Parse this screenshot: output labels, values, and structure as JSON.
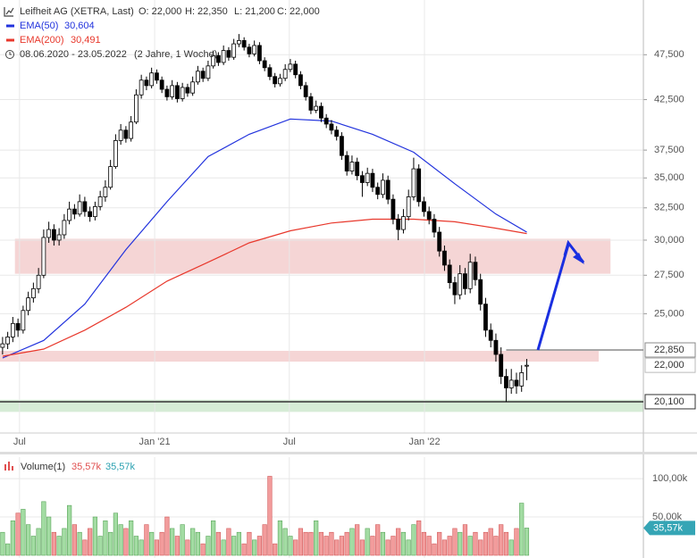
{
  "chart_data": {
    "type": "candlestick",
    "title": "Leifheit AG (XETRA, Last)",
    "ohlc_labels": [
      "O: 22,000",
      "H: 22,350",
      "L: 21,200",
      "C: 22,000"
    ],
    "period": "08.06.2020 - 23.05.2022",
    "period_note": "(2 Jahre, 1 Woche)",
    "log_scale": true,
    "grid": true,
    "ylim": [
      18.6,
      54.4
    ],
    "yticks": [
      {
        "value": 25,
        "label": "25,000"
      },
      {
        "value": 27.5,
        "label": "27,500"
      },
      {
        "value": 30,
        "label": "30,000"
      },
      {
        "value": 32.5,
        "label": "32,500"
      },
      {
        "value": 35,
        "label": "35,000"
      },
      {
        "value": 37.5,
        "label": "37,500"
      },
      {
        "value": 42.5,
        "label": "42,500"
      },
      {
        "value": 47.5,
        "label": "47,500"
      }
    ],
    "xlim": [
      -0.5,
      124.7
    ],
    "xticks": [
      {
        "value": 3.3,
        "label": "Jul"
      },
      {
        "value": 29.6,
        "label": "Jan '21"
      },
      {
        "value": 55.8,
        "label": "Jul"
      },
      {
        "value": 82.1,
        "label": "Jan '22"
      }
    ],
    "up_color": "#ffffff",
    "down_color": "#000000",
    "candles": [
      [
        23.0,
        23.6,
        22.6,
        23.2
      ],
      [
        23.2,
        23.9,
        22.9,
        23.6
      ],
      [
        23.6,
        24.8,
        23.3,
        24.4
      ],
      [
        24.4,
        24.7,
        23.6,
        24.0
      ],
      [
        24.0,
        25.5,
        23.8,
        25.2
      ],
      [
        25.2,
        26.4,
        24.9,
        26.0
      ],
      [
        26.0,
        27.0,
        25.7,
        26.6
      ],
      [
        26.6,
        28.0,
        26.3,
        27.5
      ],
      [
        27.5,
        30.8,
        27.3,
        30.2
      ],
      [
        30.2,
        31.4,
        29.8,
        30.8
      ],
      [
        30.8,
        31.2,
        29.6,
        30.0
      ],
      [
        30.0,
        30.9,
        29.6,
        30.4
      ],
      [
        30.4,
        32.0,
        30.1,
        31.5
      ],
      [
        31.5,
        33.0,
        31.2,
        32.4
      ],
      [
        32.4,
        32.8,
        31.6,
        32.0
      ],
      [
        32.0,
        33.6,
        31.8,
        33.0
      ],
      [
        33.0,
        33.4,
        31.8,
        32.2
      ],
      [
        32.2,
        32.6,
        31.4,
        31.8
      ],
      [
        31.8,
        33.0,
        31.5,
        32.6
      ],
      [
        32.6,
        33.9,
        32.3,
        33.4
      ],
      [
        33.4,
        34.8,
        33.0,
        34.2
      ],
      [
        34.2,
        36.6,
        34.0,
        36.0
      ],
      [
        36.0,
        39.0,
        35.8,
        38.4
      ],
      [
        38.4,
        40.0,
        38.0,
        39.4
      ],
      [
        39.4,
        39.8,
        38.2,
        38.6
      ],
      [
        38.6,
        40.8,
        38.3,
        40.2
      ],
      [
        40.2,
        43.6,
        40.0,
        43.0
      ],
      [
        43.0,
        45.2,
        42.6,
        44.6
      ],
      [
        44.6,
        45.0,
        43.5,
        44.0
      ],
      [
        44.0,
        46.0,
        43.7,
        45.4
      ],
      [
        45.4,
        45.8,
        44.2,
        44.6
      ],
      [
        44.6,
        45.0,
        43.2,
        43.6
      ],
      [
        43.6,
        44.0,
        42.4,
        42.8
      ],
      [
        42.8,
        44.6,
        42.5,
        44.0
      ],
      [
        44.0,
        44.4,
        42.2,
        42.6
      ],
      [
        42.6,
        44.3,
        42.3,
        43.8
      ],
      [
        43.8,
        44.2,
        42.8,
        43.2
      ],
      [
        43.2,
        45.0,
        42.9,
        44.4
      ],
      [
        44.4,
        46.2,
        44.1,
        45.6
      ],
      [
        45.6,
        46.0,
        44.4,
        44.8
      ],
      [
        44.8,
        46.8,
        44.5,
        46.2
      ],
      [
        46.2,
        48.0,
        45.9,
        47.4
      ],
      [
        47.4,
        47.8,
        46.2,
        46.6
      ],
      [
        46.6,
        48.6,
        46.3,
        48.0
      ],
      [
        48.0,
        48.4,
        46.8,
        47.2
      ],
      [
        47.2,
        49.4,
        46.9,
        48.8
      ],
      [
        48.8,
        50.0,
        48.4,
        49.2
      ],
      [
        49.2,
        49.6,
        48.0,
        48.4
      ],
      [
        48.4,
        48.8,
        47.2,
        47.6
      ],
      [
        47.6,
        49.2,
        47.3,
        48.6
      ],
      [
        48.6,
        49.0,
        46.4,
        46.8
      ],
      [
        46.8,
        47.2,
        45.6,
        46.0
      ],
      [
        46.0,
        46.4,
        44.6,
        45.0
      ],
      [
        45.0,
        45.4,
        43.8,
        44.2
      ],
      [
        44.2,
        45.3,
        43.9,
        44.8
      ],
      [
        44.8,
        46.4,
        44.5,
        45.8
      ],
      [
        45.8,
        47.0,
        45.5,
        46.4
      ],
      [
        46.4,
        46.8,
        44.8,
        45.2
      ],
      [
        45.2,
        45.6,
        43.6,
        44.0
      ],
      [
        44.0,
        44.4,
        42.4,
        42.8
      ],
      [
        42.8,
        43.2,
        41.0,
        41.4
      ],
      [
        41.4,
        42.4,
        41.1,
        41.8
      ],
      [
        41.8,
        42.2,
        40.2,
        40.6
      ],
      [
        40.6,
        41.0,
        39.6,
        40.0
      ],
      [
        40.0,
        40.4,
        39.0,
        39.4
      ],
      [
        39.4,
        39.8,
        38.4,
        38.8
      ],
      [
        38.8,
        39.2,
        36.6,
        37.0
      ],
      [
        37.0,
        37.4,
        35.2,
        35.6
      ],
      [
        35.6,
        37.0,
        35.3,
        36.4
      ],
      [
        36.4,
        36.8,
        34.8,
        35.2
      ],
      [
        35.2,
        35.6,
        33.4,
        34.6
      ],
      [
        34.6,
        35.9,
        34.3,
        35.4
      ],
      [
        35.4,
        35.8,
        33.8,
        34.2
      ],
      [
        34.2,
        34.6,
        33.2,
        33.6
      ],
      [
        33.6,
        35.4,
        33.3,
        34.8
      ],
      [
        34.8,
        35.2,
        32.8,
        33.2
      ],
      [
        33.2,
        33.6,
        31.2,
        31.6
      ],
      [
        31.6,
        32.0,
        30.0,
        30.8
      ],
      [
        30.8,
        32.4,
        30.5,
        31.8
      ],
      [
        31.8,
        34.0,
        31.5,
        33.4
      ],
      [
        33.4,
        36.8,
        33.1,
        35.8
      ],
      [
        35.8,
        36.2,
        32.6,
        33.0
      ],
      [
        33.0,
        33.4,
        31.8,
        32.2
      ],
      [
        32.2,
        32.6,
        31.2,
        31.6
      ],
      [
        31.6,
        32.0,
        30.2,
        30.6
      ],
      [
        30.6,
        31.0,
        28.8,
        29.2
      ],
      [
        29.2,
        29.6,
        27.8,
        28.2
      ],
      [
        28.2,
        28.6,
        26.6,
        27.0
      ],
      [
        27.0,
        27.4,
        25.6,
        26.2
      ],
      [
        26.2,
        28.2,
        25.9,
        27.6
      ],
      [
        27.6,
        28.0,
        26.2,
        26.6
      ],
      [
        26.6,
        29.0,
        26.3,
        28.4
      ],
      [
        28.4,
        28.8,
        26.8,
        27.2
      ],
      [
        27.2,
        27.6,
        25.2,
        25.6
      ],
      [
        25.6,
        26.0,
        23.6,
        24.0
      ],
      [
        24.0,
        24.4,
        23.0,
        23.4
      ],
      [
        23.4,
        23.8,
        22.2,
        22.6
      ],
      [
        22.6,
        23.0,
        21.0,
        21.4
      ],
      [
        21.4,
        21.8,
        20.1,
        20.8
      ],
      [
        20.8,
        21.8,
        20.5,
        21.2
      ],
      [
        21.2,
        21.6,
        20.5,
        20.9
      ],
      [
        20.9,
        22.0,
        20.6,
        21.6
      ],
      [
        22.0,
        22.35,
        21.2,
        22.0
      ]
    ],
    "series": [
      {
        "name": "EMA(50)",
        "value_label": "30,604",
        "color": "#2233dd",
        "x": [
          0,
          8,
          16,
          24,
          32,
          40,
          48,
          56,
          64,
          72,
          80,
          88,
          96,
          102
        ],
        "values": [
          22.4,
          23.4,
          25.6,
          29.3,
          33.0,
          36.9,
          39.0,
          40.5,
          40.3,
          39.0,
          37.3,
          34.5,
          32.0,
          30.604
        ]
      },
      {
        "name": "EMA(200)",
        "value_label": "30,491",
        "color": "#e8382c",
        "x": [
          0,
          8,
          16,
          24,
          32,
          40,
          48,
          56,
          64,
          72,
          80,
          88,
          96,
          102
        ],
        "values": [
          22.5,
          22.9,
          24.0,
          25.4,
          27.1,
          28.4,
          29.8,
          30.7,
          31.3,
          31.6,
          31.6,
          31.4,
          30.9,
          30.491
        ]
      }
    ],
    "zones": [
      {
        "from": 27.6,
        "to": 30.1,
        "x": [
          2.4,
          118.3
        ],
        "color": "#f5d5d5"
      },
      {
        "from": 22.2,
        "to": 22.8,
        "x": [
          -0.5,
          116
        ],
        "color": "#f5d5d5"
      },
      {
        "from": 19.6,
        "to": 20.2,
        "x": [
          -0.5,
          124.7
        ],
        "color": "#d6ecd6"
      }
    ],
    "levels": [
      {
        "value": 22.85,
        "label": "22,850",
        "color": "#888888",
        "line_from": 98
      },
      {
        "value": 22.0,
        "label": "22,000",
        "color": "#bbbbbb"
      },
      {
        "value": 20.1,
        "label": "20,100",
        "color": "#333333",
        "line_from": -0.5
      }
    ],
    "volume": {
      "name": "Volume(1)",
      "last_labels": [
        "35,57k",
        "35,57k"
      ],
      "axis_label": "35,57k",
      "ylim": [
        0,
        128
      ],
      "yticks": [
        {
          "value": 50,
          "label": "50,00k"
        },
        {
          "value": 100,
          "label": "100,00k"
        }
      ],
      "up_color": "#a3dca3",
      "down_color": "#f29c9c",
      "values": [
        30,
        15,
        45,
        55,
        60,
        40,
        25,
        35,
        70,
        50,
        30,
        25,
        35,
        65,
        40,
        30,
        20,
        35,
        50,
        25,
        45,
        30,
        55,
        40,
        35,
        45,
        25,
        20,
        40,
        30,
        20,
        30,
        50,
        35,
        25,
        40,
        20,
        35,
        30,
        15,
        25,
        45,
        30,
        20,
        35,
        25,
        30,
        15,
        30,
        20,
        25,
        40,
        103,
        15,
        45,
        35,
        25,
        20,
        35,
        30,
        30,
        45,
        30,
        25,
        30,
        20,
        25,
        30,
        35,
        40,
        20,
        35,
        25,
        40,
        30,
        20,
        25,
        35,
        30,
        20,
        40,
        45,
        30,
        25,
        15,
        30,
        20,
        25,
        35,
        30,
        40,
        25,
        30,
        20,
        30,
        35,
        25,
        40,
        30,
        20,
        35,
        68,
        35.57
      ]
    }
  }
}
